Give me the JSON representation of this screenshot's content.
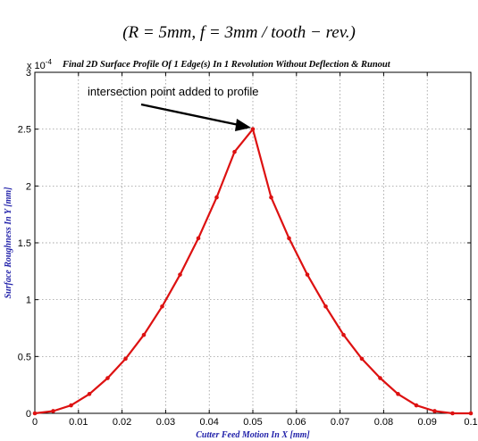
{
  "caption": "(R = 5mm, f = 3mm / tooth − rev.)",
  "chart_data": {
    "type": "line",
    "title": "Final 2D Surface Profile Of 1 Edge(s) In 1 Revolution Without Deflection & Runout",
    "xlabel": "Cutter Feed Motion In X [mm]",
    "ylabel": "Surface Roughness In Y [mm]",
    "y_exponent": "x 10",
    "y_exponent_power": "-4",
    "xlim": [
      0,
      0.1
    ],
    "ylim": [
      0,
      3
    ],
    "x_ticks": [
      "0",
      "0.01",
      "0.02",
      "0.03",
      "0.04",
      "0.05",
      "0.06",
      "0.07",
      "0.08",
      "0.09",
      "0.1"
    ],
    "y_ticks": [
      "0",
      "0.5",
      "1",
      "1.5",
      "2",
      "2.5",
      "3"
    ],
    "grid": true,
    "line_color": "#dd1111",
    "annotation": "intersection point added to profile",
    "x": [
      0,
      0.0042,
      0.0083,
      0.0125,
      0.0167,
      0.0208,
      0.025,
      0.0292,
      0.0333,
      0.0375,
      0.0417,
      0.0458,
      0.05,
      0.0542,
      0.0583,
      0.0625,
      0.0667,
      0.0708,
      0.075,
      0.0792,
      0.0833,
      0.0875,
      0.0917,
      0.0958,
      0.1
    ],
    "y": [
      0,
      0.02,
      0.07,
      0.17,
      0.31,
      0.48,
      0.69,
      0.94,
      1.22,
      1.54,
      1.9,
      2.3,
      2.5,
      1.9,
      1.54,
      1.22,
      0.94,
      0.69,
      0.48,
      0.31,
      0.17,
      0.07,
      0.02,
      0,
      0
    ]
  }
}
